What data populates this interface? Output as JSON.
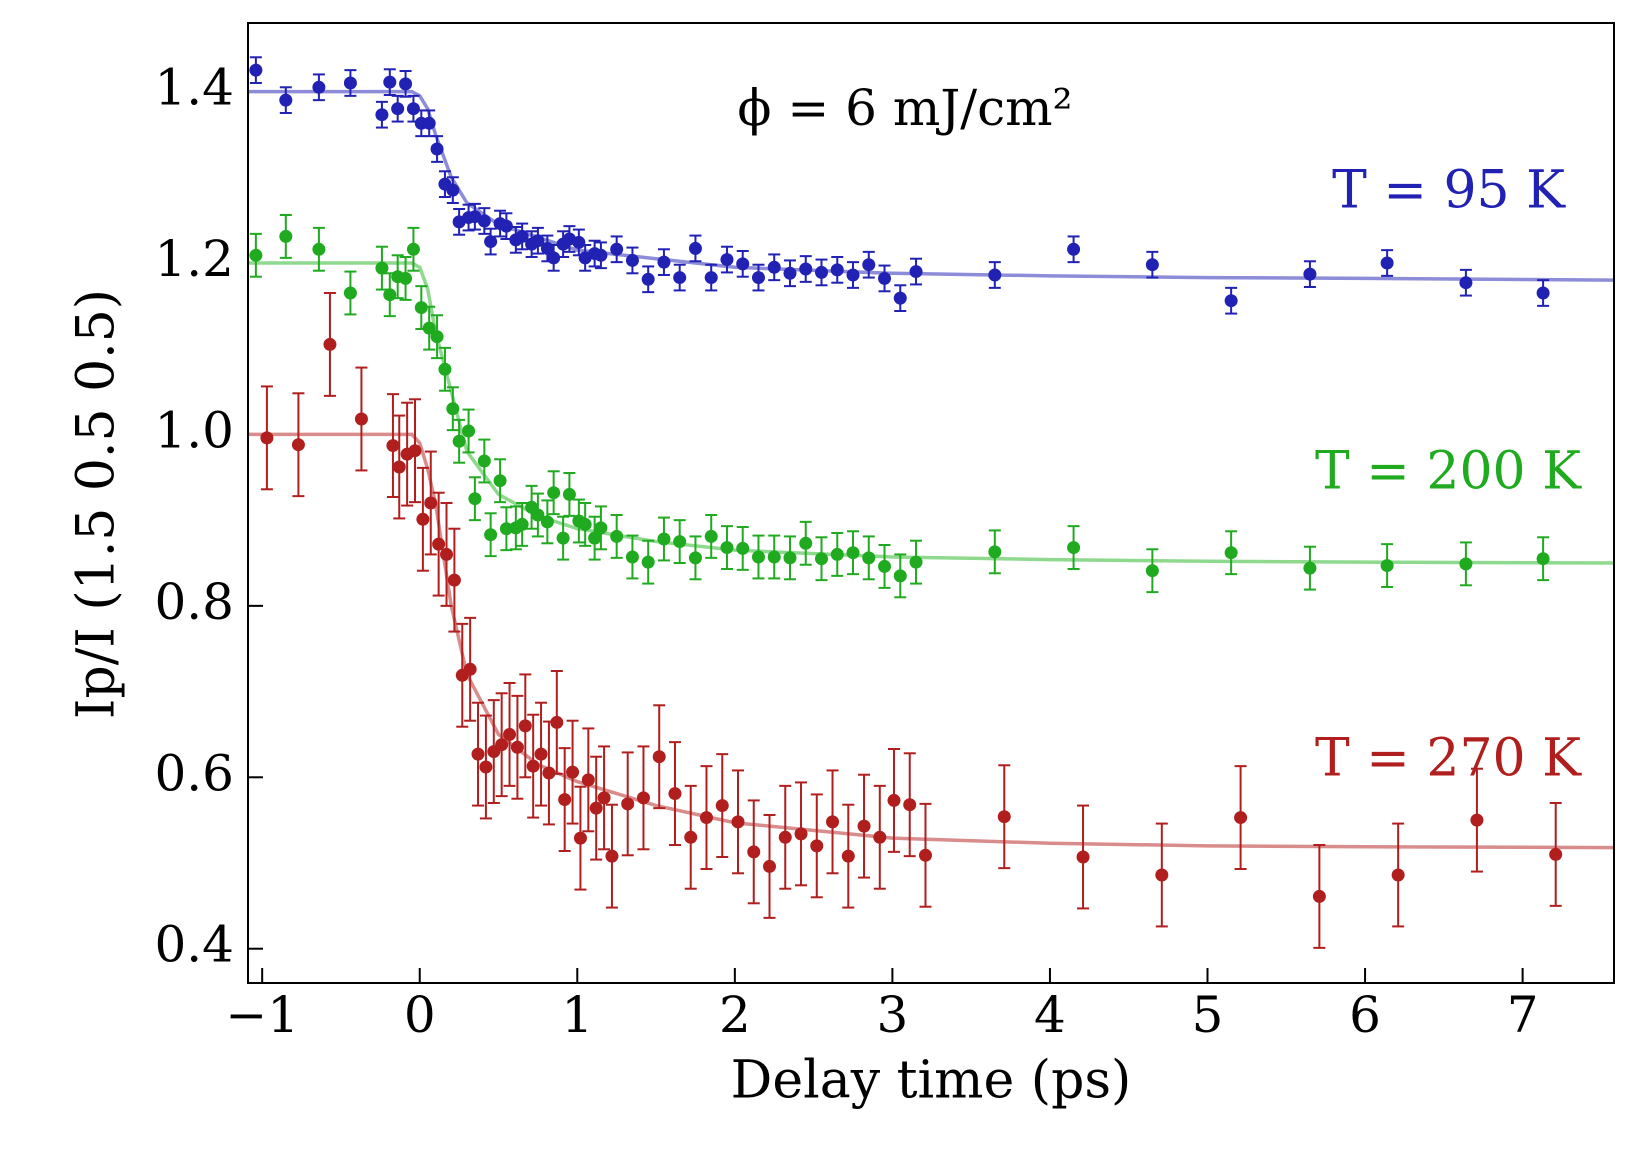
{
  "chart_data": {
    "type": "scatter",
    "annotation": "ϕ = 6 mJ/cm²",
    "xlabel": "Delay time (ps)",
    "ylabel": "Ip/I (1.5 0.5 0.5)",
    "xlim": [
      -1.09,
      7.58
    ],
    "ylim": [
      0.36,
      1.48
    ],
    "xticks": [
      {
        "value": -1,
        "label": "−1"
      },
      0,
      1,
      2,
      3,
      4,
      5,
      6,
      7
    ],
    "yticks": [
      0.4,
      0.6,
      0.8,
      {
        "value": 1,
        "label": "1.0"
      },
      1.2,
      1.4
    ],
    "grid": false,
    "series": [
      {
        "name": "T = 95 K",
        "color": "#2121b3",
        "fit_color": "#8c8cd8",
        "error": 0.015,
        "x": [
          -1.04,
          -0.85,
          -0.64,
          -0.44,
          -0.24,
          -0.19,
          -0.14,
          -0.09,
          -0.04,
          0.01,
          0.06,
          0.11,
          0.16,
          0.21,
          0.25,
          0.31,
          0.35,
          0.41,
          0.45,
          0.51,
          0.55,
          0.61,
          0.65,
          0.71,
          0.75,
          0.81,
          0.85,
          0.91,
          0.95,
          1.01,
          1.05,
          1.11,
          1.15,
          1.25,
          1.35,
          1.45,
          1.55,
          1.65,
          1.75,
          1.85,
          1.95,
          2.05,
          2.15,
          2.25,
          2.35,
          2.45,
          2.55,
          2.65,
          2.75,
          2.85,
          2.95,
          3.05,
          3.15,
          3.65,
          4.15,
          4.65,
          5.15,
          5.65,
          6.14,
          6.64,
          7.13
        ],
        "values": [
          1.425,
          1.39,
          1.405,
          1.41,
          1.373,
          1.411,
          1.38,
          1.409,
          1.38,
          1.363,
          1.363,
          1.333,
          1.292,
          1.285,
          1.248,
          1.253,
          1.254,
          1.249,
          1.225,
          1.246,
          1.243,
          1.227,
          1.231,
          1.222,
          1.226,
          1.217,
          1.206,
          1.222,
          1.228,
          1.224,
          1.206,
          1.211,
          1.209,
          1.216,
          1.203,
          1.181,
          1.201,
          1.183,
          1.217,
          1.183,
          1.204,
          1.199,
          1.183,
          1.195,
          1.188,
          1.193,
          1.189,
          1.192,
          1.186,
          1.198,
          1.182,
          1.159,
          1.19,
          1.186,
          1.216,
          1.198,
          1.156,
          1.187,
          1.2,
          1.177,
          1.165
        ],
        "fit": {
          "x": [
            -1.09,
            -0.05,
            0,
            0.05,
            0.1,
            0.2,
            0.3,
            0.5,
            0.75,
            1,
            1.5,
            2,
            3,
            4,
            5,
            6,
            7.58
          ],
          "values": [
            1.4,
            1.4,
            1.395,
            1.38,
            1.35,
            1.3,
            1.27,
            1.245,
            1.23,
            1.215,
            1.205,
            1.195,
            1.188,
            1.185,
            1.183,
            1.182,
            1.18
          ]
        }
      },
      {
        "name": "T = 200 K",
        "color": "#1faa1f",
        "fit_color": "#8fd98f",
        "error": 0.025,
        "x": [
          -1.04,
          -0.85,
          -0.64,
          -0.44,
          -0.24,
          -0.19,
          -0.14,
          -0.09,
          -0.04,
          0.01,
          0.06,
          0.11,
          0.16,
          0.21,
          0.25,
          0.31,
          0.35,
          0.41,
          0.45,
          0.51,
          0.55,
          0.61,
          0.65,
          0.71,
          0.75,
          0.81,
          0.85,
          0.91,
          0.95,
          1.01,
          1.05,
          1.11,
          1.15,
          1.25,
          1.35,
          1.45,
          1.55,
          1.65,
          1.75,
          1.85,
          1.95,
          2.05,
          2.15,
          2.25,
          2.35,
          2.45,
          2.55,
          2.65,
          2.75,
          2.85,
          2.95,
          3.05,
          3.15,
          3.65,
          4.15,
          4.65,
          5.15,
          5.65,
          6.14,
          6.64,
          7.13
        ],
        "values": [
          1.209,
          1.231,
          1.216,
          1.165,
          1.194,
          1.163,
          1.184,
          1.182,
          1.216,
          1.148,
          1.124,
          1.114,
          1.076,
          1.03,
          0.992,
          1.004,
          0.925,
          0.969,
          0.883,
          0.946,
          0.89,
          0.891,
          0.895,
          0.915,
          0.906,
          0.898,
          0.932,
          0.879,
          0.93,
          0.899,
          0.895,
          0.879,
          0.891,
          0.881,
          0.857,
          0.851,
          0.878,
          0.875,
          0.856,
          0.881,
          0.868,
          0.867,
          0.857,
          0.857,
          0.856,
          0.873,
          0.855,
          0.86,
          0.862,
          0.856,
          0.846,
          0.835,
          0.851,
          0.863,
          0.868,
          0.841,
          0.862,
          0.844,
          0.847,
          0.849,
          0.855
        ],
        "fit": {
          "x": [
            -1.09,
            -0.05,
            0,
            0.05,
            0.1,
            0.2,
            0.3,
            0.5,
            0.75,
            1,
            1.5,
            2,
            3,
            4,
            5,
            6,
            7.58
          ],
          "values": [
            1.2,
            1.2,
            1.195,
            1.17,
            1.12,
            1.05,
            0.98,
            0.93,
            0.905,
            0.89,
            0.875,
            0.865,
            0.857,
            0.854,
            0.852,
            0.851,
            0.85
          ]
        }
      },
      {
        "name": "T = 270 K",
        "color": "#b01e1e",
        "fit_color": "#d98c8c",
        "error": 0.06,
        "x": [
          -0.97,
          -0.77,
          -0.57,
          -0.37,
          -0.17,
          -0.13,
          -0.08,
          -0.03,
          0.02,
          0.07,
          0.12,
          0.17,
          0.22,
          0.27,
          0.32,
          0.37,
          0.42,
          0.47,
          0.52,
          0.57,
          0.62,
          0.67,
          0.72,
          0.77,
          0.82,
          0.87,
          0.92,
          0.97,
          1.02,
          1.07,
          1.12,
          1.17,
          1.22,
          1.32,
          1.42,
          1.52,
          1.62,
          1.72,
          1.82,
          1.92,
          2.02,
          2.12,
          2.22,
          2.32,
          2.42,
          2.52,
          2.62,
          2.72,
          2.82,
          2.92,
          3.01,
          3.11,
          3.21,
          3.71,
          4.21,
          4.71,
          5.21,
          5.71,
          6.21,
          6.71,
          7.21
        ],
        "values": [
          0.996,
          0.988,
          1.105,
          1.018,
          0.987,
          0.962,
          0.977,
          0.981,
          0.901,
          0.92,
          0.872,
          0.86,
          0.83,
          0.719,
          0.726,
          0.627,
          0.612,
          0.63,
          0.638,
          0.65,
          0.635,
          0.66,
          0.613,
          0.627,
          0.605,
          0.664,
          0.574,
          0.606,
          0.529,
          0.597,
          0.564,
          0.576,
          0.508,
          0.569,
          0.576,
          0.624,
          0.581,
          0.53,
          0.553,
          0.567,
          0.548,
          0.513,
          0.496,
          0.53,
          0.534,
          0.52,
          0.548,
          0.508,
          0.543,
          0.53,
          0.573,
          0.568,
          0.509,
          0.554,
          0.507,
          0.486,
          0.553,
          0.461,
          0.486,
          0.55,
          0.51
        ],
        "fit": {
          "x": [
            -1.09,
            -0.05,
            0,
            0.05,
            0.1,
            0.2,
            0.3,
            0.5,
            0.75,
            1,
            1.5,
            2,
            3,
            4,
            5,
            6,
            7.58
          ],
          "values": [
            1,
            1,
            0.99,
            0.96,
            0.92,
            0.8,
            0.72,
            0.65,
            0.615,
            0.595,
            0.567,
            0.547,
            0.529,
            0.523,
            0.52,
            0.519,
            0.518
          ]
        }
      }
    ]
  }
}
